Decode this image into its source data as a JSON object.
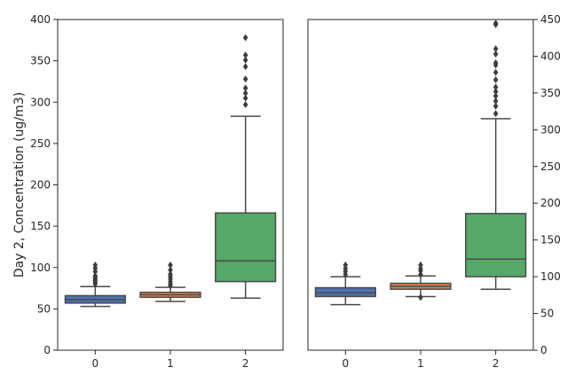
{
  "chart_data": [
    {
      "type": "box",
      "ylabel": "Day 2, Concentration (ug/m3)",
      "y_axis_side": "left",
      "ylim": [
        0,
        400
      ],
      "yticks": [
        0,
        50,
        100,
        150,
        200,
        250,
        300,
        350,
        400
      ],
      "categories": [
        "0",
        "1",
        "2"
      ],
      "colors": [
        "#4c72b0",
        "#dd8452",
        "#55a868"
      ],
      "boxes": [
        {
          "category": "0",
          "whisker_low": 53,
          "q1": 57,
          "median": 61,
          "q3": 66,
          "whisker_high": 77,
          "fliers": [
            80,
            82,
            84,
            86,
            88,
            90,
            95,
            99,
            103
          ]
        },
        {
          "category": "1",
          "whisker_low": 59,
          "q1": 64,
          "median": 67,
          "q3": 70,
          "whisker_high": 76,
          "fliers": [
            78,
            80,
            83,
            86,
            89,
            92,
            97,
            103
          ]
        },
        {
          "category": "2",
          "whisker_low": 63,
          "q1": 83,
          "median": 108,
          "q3": 166,
          "whisker_high": 283,
          "fliers": [
            297,
            305,
            311,
            317,
            328,
            343,
            351,
            357,
            378
          ]
        }
      ]
    },
    {
      "type": "box",
      "ylabel": "",
      "y_axis_side": "right",
      "ylim": [
        0,
        450
      ],
      "yticks": [
        0,
        50,
        100,
        150,
        200,
        250,
        300,
        350,
        400,
        450
      ],
      "categories": [
        "0",
        "1",
        "2"
      ],
      "colors": [
        "#4c72b0",
        "#dd8452",
        "#55a868"
      ],
      "boxes": [
        {
          "category": "0",
          "whisker_low": 62,
          "q1": 73,
          "median": 78,
          "q3": 85,
          "whisker_high": 100,
          "fliers": [
            103,
            107,
            111,
            116
          ]
        },
        {
          "category": "1",
          "whisker_low": 73,
          "q1": 83,
          "median": 87,
          "q3": 91,
          "whisker_high": 101,
          "fliers": [
            72,
            103,
            108,
            111,
            116
          ]
        },
        {
          "category": "2",
          "whisker_low": 83,
          "q1": 100,
          "median": 124,
          "q3": 186,
          "whisker_high": 315,
          "fliers": [
            322,
            332,
            339,
            346,
            352,
            358,
            368,
            378,
            388,
            391,
            403,
            410,
            443,
            445
          ]
        }
      ]
    }
  ]
}
